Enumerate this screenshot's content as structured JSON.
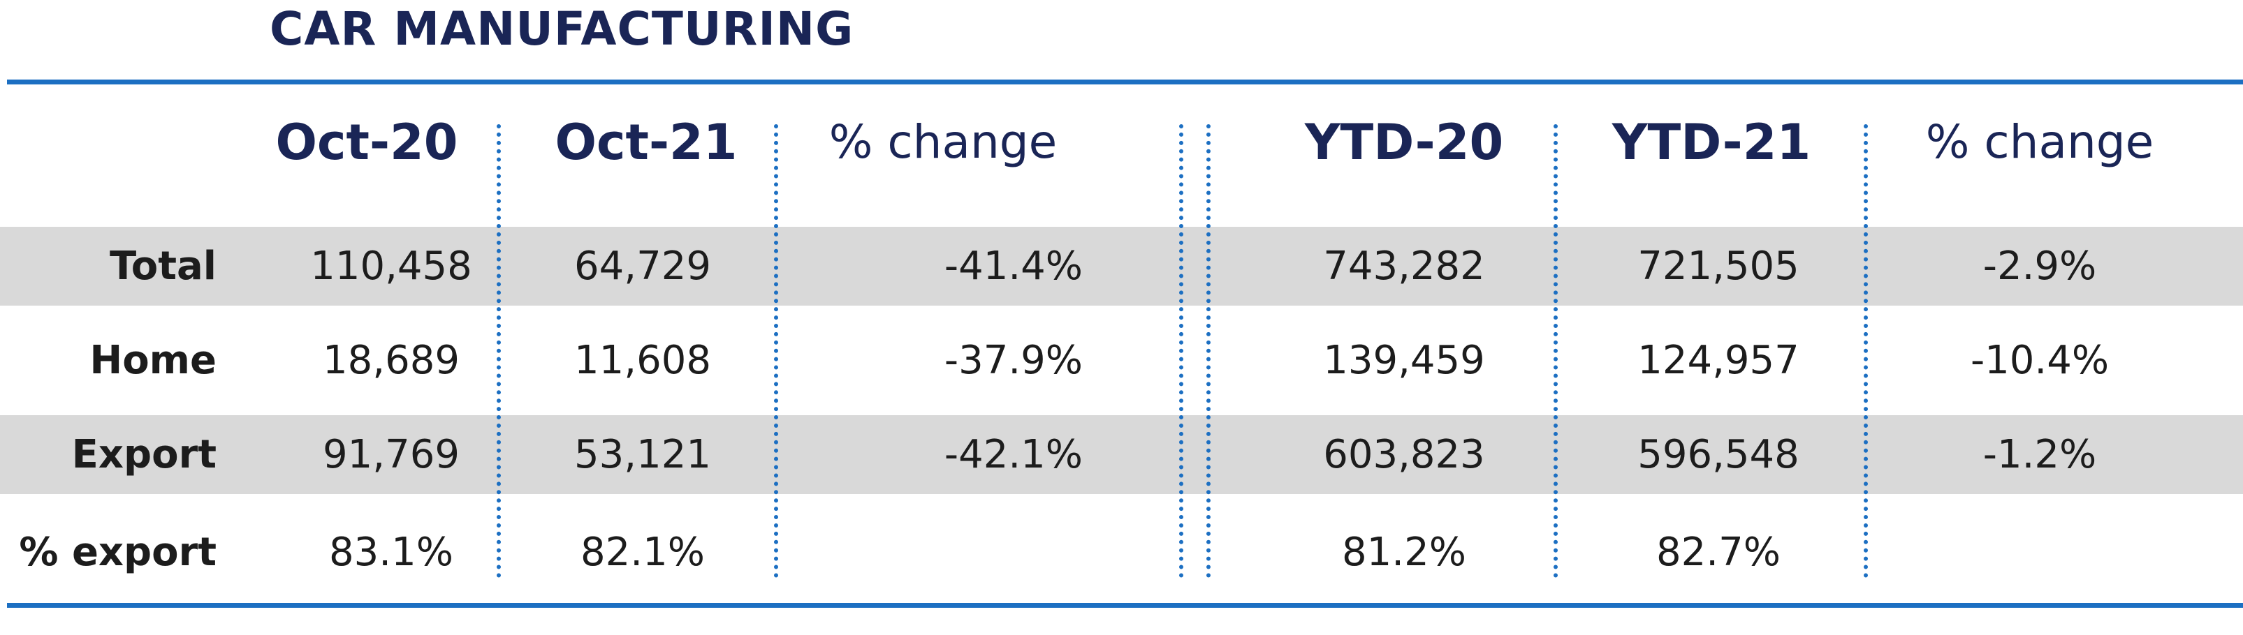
{
  "title": "CAR MANUFACTURING",
  "columns": [
    "Oct-20",
    "Oct-21",
    "% change",
    "YTD-20",
    "YTD-21",
    "% change"
  ],
  "rows": [
    {
      "label": "Total",
      "values": [
        "110,458",
        "64,729",
        "-41.4%",
        "743,282",
        "721,505",
        "-2.9%"
      ]
    },
    {
      "label": "Home",
      "values": [
        "18,689",
        "11,608",
        "-37.9%",
        "139,459",
        "124,957",
        "-10.4%"
      ]
    },
    {
      "label": "Export",
      "values": [
        "91,769",
        "53,121",
        "-42.1%",
        "603,823",
        "596,548",
        "-1.2%"
      ]
    },
    {
      "label": "% export",
      "values": [
        "83.1%",
        "82.1%",
        "",
        "81.2%",
        "82.7%",
        ""
      ]
    }
  ],
  "colors": {
    "title_text": "#1a2556",
    "rule_blue": "#1c6fc2",
    "shaded_row": "#d9d9d9",
    "body_text": "#1c1c1c"
  }
}
